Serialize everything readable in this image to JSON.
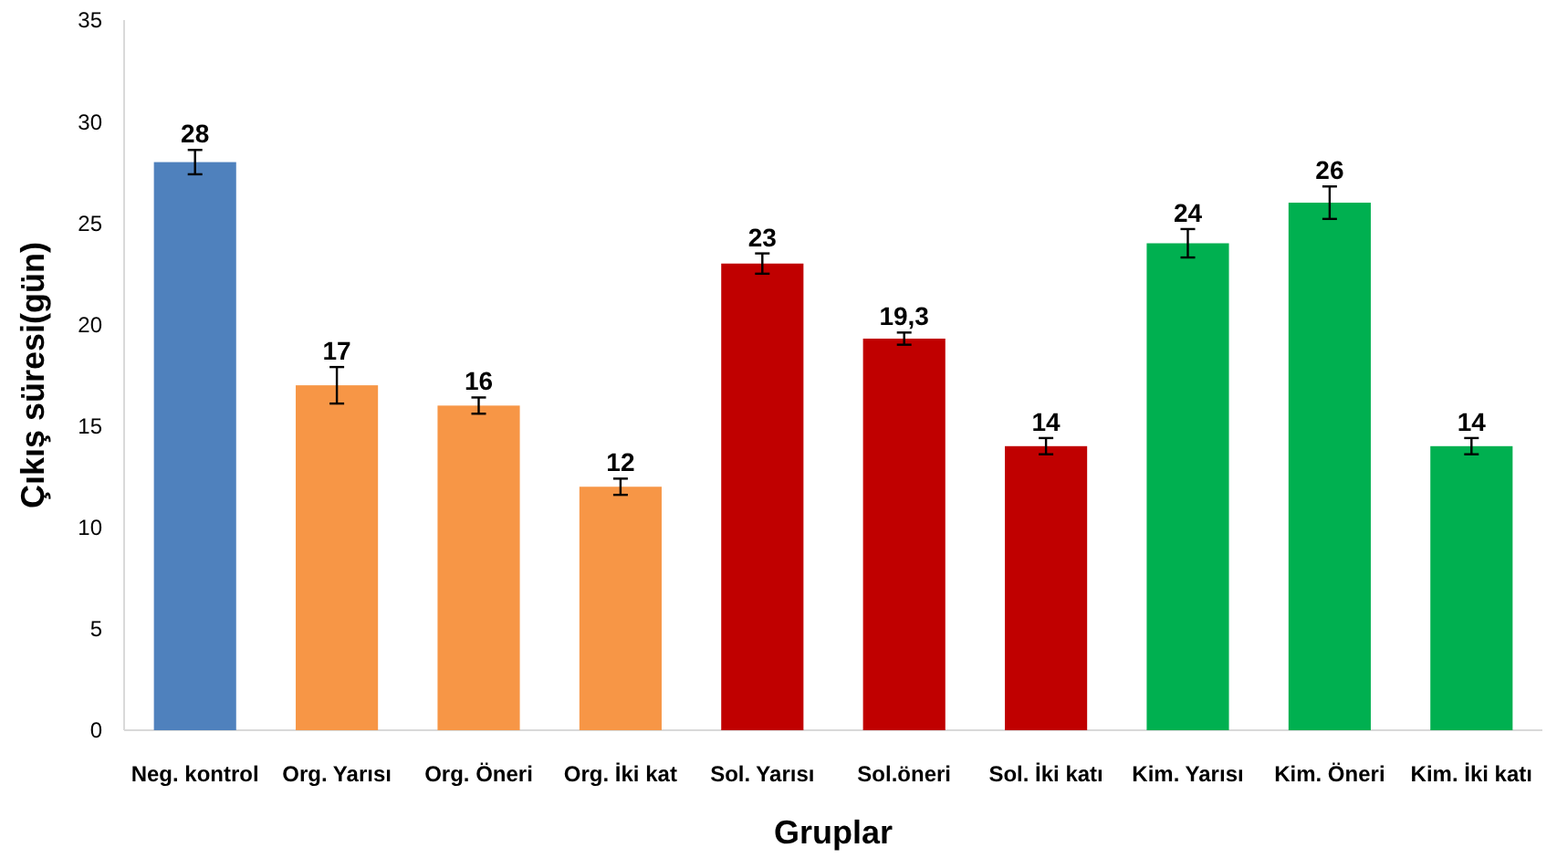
{
  "chart_data": {
    "type": "bar",
    "xlabel": "Gruplar",
    "ylabel": "Çıkış süresi(gün)",
    "categories": [
      "Neg. kontrol",
      "Org. Yarısı",
      "Org. Öneri",
      "Org. İki kat",
      "Sol. Yarısı",
      "Sol.öneri",
      "Sol. İki katı",
      "Kim. Yarısı",
      "Kim. Öneri",
      "Kim. İki katı"
    ],
    "values": [
      28,
      17,
      16,
      12,
      23,
      19.3,
      14,
      24,
      26,
      14
    ],
    "value_labels": [
      "28",
      "17",
      "16",
      "12",
      "23",
      "19,3",
      "14",
      "24",
      "26",
      "14"
    ],
    "errors": [
      0.6,
      0.9,
      0.4,
      0.4,
      0.5,
      0.3,
      0.4,
      0.7,
      0.8,
      0.4
    ],
    "colors": [
      "#4f81bd",
      "#f79646",
      "#f79646",
      "#f79646",
      "#c00000",
      "#c00000",
      "#c00000",
      "#00b050",
      "#00b050",
      "#00b050"
    ],
    "ylim": [
      0,
      35
    ],
    "yticks": [
      0,
      5,
      10,
      15,
      20,
      25,
      30,
      35
    ],
    "grid": false
  }
}
